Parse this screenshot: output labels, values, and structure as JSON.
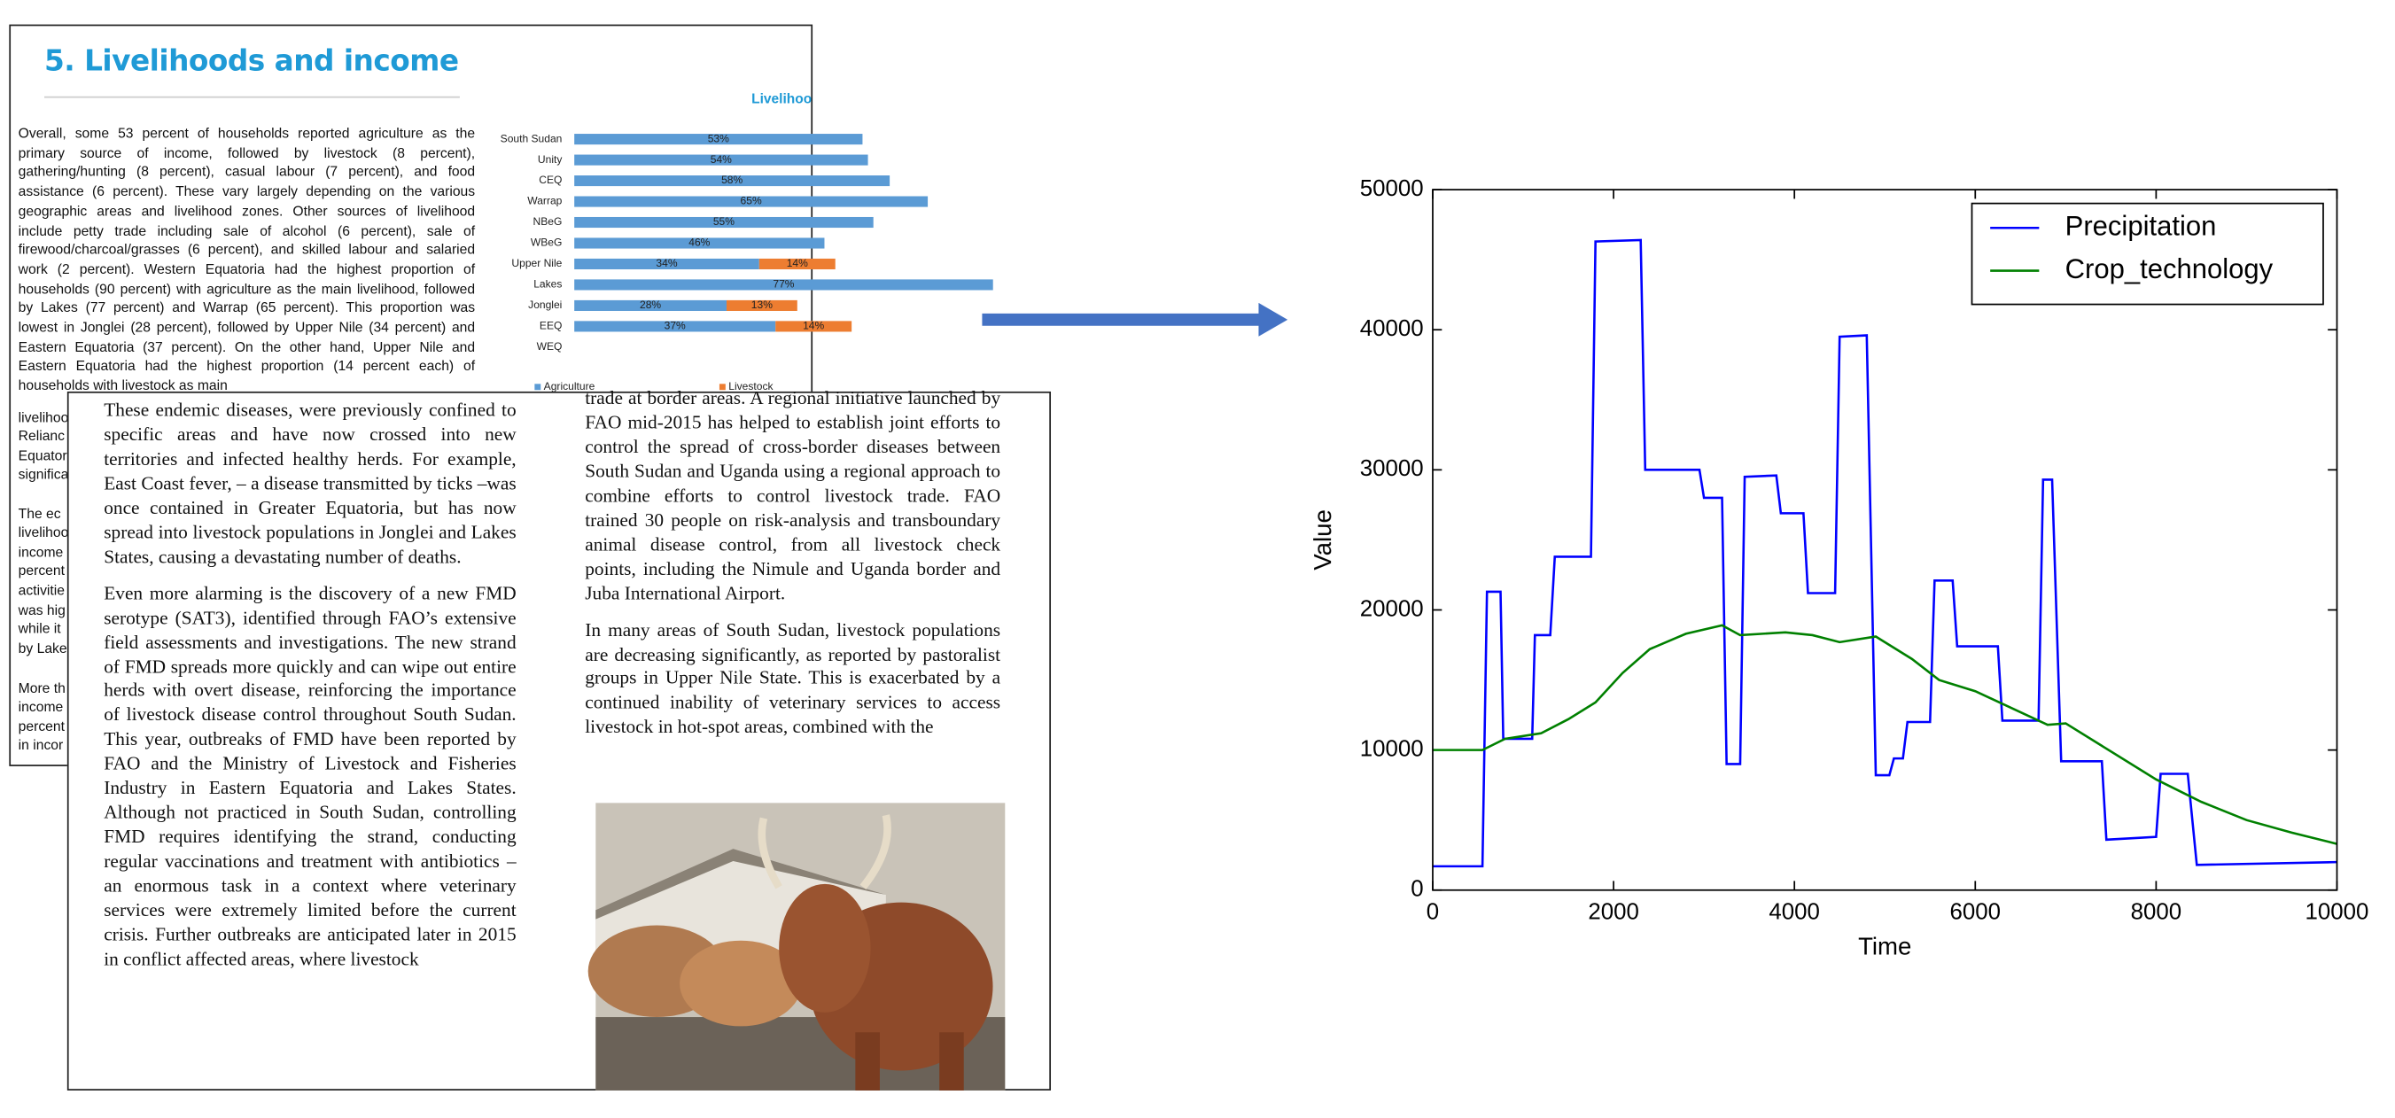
{
  "report_page": {
    "heading": "5. Livelihoods and income",
    "paragraph": "Overall, some 53 percent of households reported agriculture as the primary source of income, followed by livestock (8 percent), gathering/hunting (8 percent), casual labour (7 percent), and food assistance (6 percent). These vary largely depending on the various geographic areas and livelihood zones. Other sources of livelihood include petty trade including sale of alcohol (6 percent), sale of firewood/charcoal/grasses (6 percent), and skilled labour and salaried work (2 percent). Western Equatoria had the highest proportion of households (90 percent) with agriculture as the main livelihood, followed by Lakes (77 percent) and Warrap (65 percent). This proportion was lowest in Jonglei (28 percent), followed by Upper Nile (34 percent) and Eastern Equatoria (37 percent). On the other hand, Upper Nile and Eastern Equatoria had the highest proportion (14 percent each) of households with livestock as main",
    "fragments": [
      "livelihoo",
      "Relianc",
      "Equator",
      "significa",
      "The ec",
      "livelihoo",
      "income",
      "percent",
      "activitie",
      "was hig",
      "while it",
      "by Lake",
      "More th",
      "income",
      "percent",
      "in incor"
    ]
  },
  "article_page": {
    "left_column": [
      "These endemic diseases, were previously confined to specific areas and have now crossed into new territories and infected healthy herds. For example, East Coast fever, – a disease transmitted by ticks –was once contained in Greater Equatoria, but has now spread into livestock populations in Jonglei and Lakes States, causing a devastating number of deaths.",
      "Even more alarming is the discovery of a new FMD serotype (SAT3), identified through FAO’s extensive field assessments and investigations. The new strand of FMD spreads more quickly and can wipe out entire herds with overt disease, reinforcing the importance of livestock disease control throughout South Sudan. This year, outbreaks of FMD have been reported by FAO and the Ministry of Livestock and Fisheries Industry in Eastern Equatoria and Lakes States. Although not practiced in South Sudan, controlling FMD requires identifying the strand, conducting regular vaccinations and treatment with antibiotics – an enormous task in a context where veterinary services were extremely limited before the current crisis. Further outbreaks are anticipated later in 2015 in conflict affected areas, where livestock"
    ],
    "right_column": [
      "trade at border areas. A regional initiative launched by FAO mid-2015 has helped to establish joint efforts to control the spread of cross-border diseases between South Sudan and Uganda using a regional approach to combine efforts to control livestock trade. FAO trained 30 people on risk-analysis and transboundary animal disease control, from all livestock check points, including the Nimule and Uganda border and Juba International Airport.",
      "In many areas of South Sudan, livestock populations are decreasing significantly, as reported by pastoralist groups in Upper Nile State. This is exacerbated by a continued inability of veterinary services to access livestock in hot-spot areas, combined with the"
    ]
  },
  "chart_data": [
    {
      "type": "bar",
      "orientation": "horizontal",
      "stacked": true,
      "title": "Livelihoo",
      "categories": [
        "South Sudan",
        "Unity",
        "CEQ",
        "Warrap",
        "NBeG",
        "WBeG",
        "Upper Nile",
        "Lakes",
        "Jonglei",
        "EEQ",
        "WEQ"
      ],
      "xlim": [
        0,
        100
      ],
      "series": [
        {
          "name": "Agriculture",
          "color": "#5b9bd5",
          "values": [
            53,
            54,
            58,
            65,
            55,
            46,
            34,
            77,
            28,
            37,
            null
          ],
          "value_labels": [
            "53%",
            "54%",
            "58%",
            "65%",
            "55%",
            "46%",
            "34%",
            "77%",
            "28%",
            "37%",
            null
          ]
        },
        {
          "name": "Livestock",
          "color": "#ed7d31",
          "values": [
            null,
            null,
            null,
            null,
            null,
            null,
            14,
            null,
            13,
            14,
            null
          ],
          "value_labels": [
            null,
            null,
            null,
            null,
            null,
            null,
            "14%",
            null,
            "13%",
            "14%",
            null
          ]
        }
      ]
    },
    {
      "type": "line",
      "xlabel": "Time",
      "ylabel": "Value",
      "xlim": [
        0,
        10000
      ],
      "ylim": [
        0,
        50000
      ],
      "xticks": [
        0,
        2000,
        4000,
        6000,
        8000,
        10000
      ],
      "yticks": [
        0,
        10000,
        20000,
        30000,
        40000,
        50000
      ],
      "legend": "upper right",
      "series": [
        {
          "name": "Precipitation",
          "color": "#0000ff",
          "x": [
            0,
            550,
            600,
            750,
            780,
            1100,
            1130,
            1300,
            1350,
            1750,
            1800,
            2300,
            2350,
            2950,
            3000,
            3200,
            3250,
            3400,
            3450,
            3800,
            3850,
            4100,
            4150,
            4450,
            4500,
            4800,
            4900,
            5050,
            5100,
            5200,
            5250,
            5500,
            5550,
            5750,
            5800,
            6250,
            6300,
            6700,
            6750,
            6850,
            6950,
            7400,
            7450,
            8000,
            8050,
            8350,
            8450,
            10000
          ],
          "values": [
            1700,
            1700,
            21300,
            21300,
            10800,
            10800,
            18200,
            18200,
            23800,
            23800,
            46300,
            46400,
            30000,
            30000,
            28000,
            28000,
            9000,
            9000,
            29500,
            29600,
            26900,
            26900,
            21200,
            21200,
            39500,
            39600,
            8200,
            8200,
            9400,
            9400,
            12000,
            12000,
            22100,
            22100,
            17400,
            17400,
            12100,
            12100,
            29300,
            29300,
            9200,
            9200,
            3600,
            3800,
            8300,
            8300,
            1800,
            2000
          ]
        },
        {
          "name": "Crop_technology",
          "color": "#008000",
          "x": [
            0,
            550,
            800,
            1200,
            1500,
            1800,
            2100,
            2400,
            2800,
            3200,
            3400,
            3900,
            4200,
            4500,
            4900,
            5300,
            5600,
            6000,
            6400,
            6800,
            7000,
            7400,
            8000,
            8500,
            9000,
            9500,
            10000
          ],
          "values": [
            10000,
            10000,
            10800,
            11200,
            12200,
            13400,
            15500,
            17200,
            18300,
            18900,
            18200,
            18400,
            18200,
            17700,
            18100,
            16500,
            15000,
            14200,
            13000,
            11800,
            11900,
            10300,
            7900,
            6300,
            5000,
            4100,
            3300
          ]
        }
      ]
    }
  ]
}
